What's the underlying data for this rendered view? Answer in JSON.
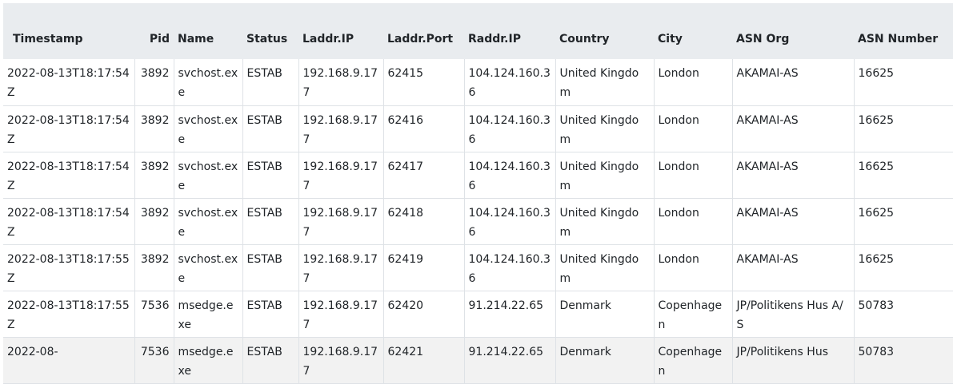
{
  "table": {
    "columns": [
      "Timestamp",
      "Pid",
      "Name",
      "Status",
      "Laddr.IP",
      "Laddr.Port",
      "Raddr.IP",
      "Country",
      "City",
      "ASN Org",
      "ASN Number"
    ],
    "rows": [
      [
        "2022-08-13T18:17:54Z",
        "3892",
        "svchost.exe",
        "ESTAB",
        "192.168.9.177",
        "62415",
        "104.124.160.36",
        "United Kingdom",
        "London",
        "AKAMAI-AS",
        "16625"
      ],
      [
        "2022-08-13T18:17:54Z",
        "3892",
        "svchost.exe",
        "ESTAB",
        "192.168.9.177",
        "62416",
        "104.124.160.36",
        "United Kingdom",
        "London",
        "AKAMAI-AS",
        "16625"
      ],
      [
        "2022-08-13T18:17:54Z",
        "3892",
        "svchost.exe",
        "ESTAB",
        "192.168.9.177",
        "62417",
        "104.124.160.36",
        "United Kingdom",
        "London",
        "AKAMAI-AS",
        "16625"
      ],
      [
        "2022-08-13T18:17:54Z",
        "3892",
        "svchost.exe",
        "ESTAB",
        "192.168.9.177",
        "62418",
        "104.124.160.36",
        "United Kingdom",
        "London",
        "AKAMAI-AS",
        "16625"
      ],
      [
        "2022-08-13T18:17:55Z",
        "3892",
        "svchost.exe",
        "ESTAB",
        "192.168.9.177",
        "62419",
        "104.124.160.36",
        "United Kingdom",
        "London",
        "AKAMAI-AS",
        "16625"
      ],
      [
        "2022-08-13T18:17:55Z",
        "7536",
        "msedge.exe",
        "ESTAB",
        "192.168.9.177",
        "62420",
        "91.214.22.65",
        "Denmark",
        "Copenhagen",
        "JP/Politikens Hus A/S",
        "50783"
      ],
      [
        "2022-08-",
        "7536",
        "msedge.exe",
        "ESTAB",
        "192.168.9.177",
        "62421",
        "91.214.22.65",
        "Denmark",
        "Copenhagen",
        "JP/Politikens Hus",
        "50783"
      ]
    ]
  },
  "colors": {
    "header_bg": "#e9ecef",
    "stripe_bg": "#f2f2f2",
    "border": "#dee2e6",
    "text": "#212529"
  }
}
